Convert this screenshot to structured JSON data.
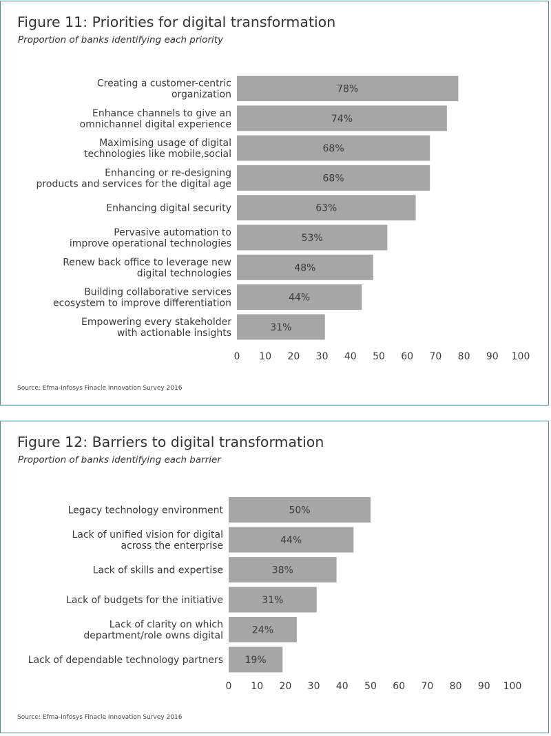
{
  "chart_data": [
    {
      "type": "bar",
      "orientation": "horizontal",
      "title": "Figure 11: Priorities for digital transformation",
      "subtitle": "Proportion of banks identifying each priority",
      "categories": [
        [
          "Creating a customer-centric",
          "organization"
        ],
        [
          "Enhance channels to give an",
          "omnichannel digital experience"
        ],
        [
          "Maximising usage of digital",
          "technologies like mobile,social"
        ],
        [
          "Enhancing or re-designing",
          "products and services for the digital age"
        ],
        [
          "Enhancing digital security"
        ],
        [
          "Pervasive automation to",
          "improve operational technologies"
        ],
        [
          "Renew back office to leverage new",
          "digital technologies"
        ],
        [
          "Building collaborative services",
          "ecosystem to improve differentiation"
        ],
        [
          "Empowering every stakeholder",
          "with actionable insights"
        ]
      ],
      "values": [
        78,
        74,
        68,
        68,
        63,
        53,
        48,
        44,
        31
      ],
      "value_labels": [
        "78%",
        "74%",
        "68%",
        "68%",
        "63%",
        "53%",
        "48%",
        "44%",
        "31%"
      ],
      "xlim": [
        0,
        100
      ],
      "xticks": [
        "0",
        "10",
        "20",
        "30",
        "40",
        "50",
        "60",
        "70",
        "80",
        "90",
        "100"
      ],
      "grid": false,
      "bar_color": "#a6a6a6",
      "source": "Source: Efma-Infosys Finacle Innovation Survey 2016"
    },
    {
      "type": "bar",
      "orientation": "horizontal",
      "title": "Figure 12: Barriers to digital transformation",
      "subtitle": "Proportion of banks identifying each barrier",
      "categories": [
        [
          "Legacy technology environment"
        ],
        [
          "Lack of unified vision for digital",
          "across the enterprise"
        ],
        [
          "Lack of skills and expertise"
        ],
        [
          "Lack of budgets for the initiative"
        ],
        [
          "Lack of clarity on which",
          "department/role owns digital"
        ],
        [
          "Lack of dependable technology partners"
        ]
      ],
      "values": [
        50,
        44,
        38,
        31,
        24,
        19
      ],
      "value_labels": [
        "50%",
        "44%",
        "38%",
        "31%",
        "24%",
        "19%"
      ],
      "xlim": [
        0,
        100
      ],
      "xticks": [
        "0",
        "10",
        "20",
        "30",
        "40",
        "50",
        "60",
        "70",
        "80",
        "90",
        "100"
      ],
      "grid": false,
      "bar_color": "#a6a6a6",
      "source": "Source: Efma-Infosys Finacle Innovation Survey 2016"
    }
  ],
  "colors": {
    "border": "#4f8f91",
    "bar": "#a6a6a6",
    "text": "#3a3a3a"
  }
}
